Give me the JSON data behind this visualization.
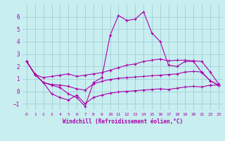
{
  "xlabel": "Windchill (Refroidissement éolien,°C)",
  "background_color": "#c8eef0",
  "grid_color": "#a0d0d8",
  "line_color": "#aa00aa",
  "xlim": [
    -0.5,
    23.5
  ],
  "ylim": [
    -1.5,
    7.0
  ],
  "yticks": [
    -1,
    0,
    1,
    2,
    3,
    4,
    5,
    6
  ],
  "xticks": [
    0,
    1,
    2,
    3,
    4,
    5,
    6,
    7,
    8,
    9,
    10,
    11,
    12,
    13,
    14,
    15,
    16,
    17,
    18,
    19,
    20,
    21,
    22,
    23
  ],
  "line1_y": [
    2.4,
    1.4,
    0.7,
    0.5,
    0.3,
    -0.2,
    -0.5,
    -1.2,
    0.7,
    1.1,
    4.5,
    6.1,
    5.7,
    5.8,
    6.4,
    4.7,
    4.0,
    2.1,
    2.0,
    2.4,
    2.4,
    1.5,
    0.85,
    0.5
  ],
  "line2_y": [
    2.4,
    1.35,
    1.1,
    1.2,
    1.3,
    1.4,
    1.2,
    1.3,
    1.4,
    1.5,
    1.7,
    1.9,
    2.1,
    2.2,
    2.4,
    2.5,
    2.6,
    2.45,
    2.5,
    2.5,
    2.45,
    2.4,
    1.55,
    0.6
  ],
  "line3_y": [
    2.4,
    1.35,
    0.7,
    0.55,
    0.5,
    0.4,
    0.2,
    0.1,
    0.6,
    0.8,
    0.95,
    1.05,
    1.1,
    1.15,
    1.2,
    1.25,
    1.3,
    1.35,
    1.4,
    1.55,
    1.6,
    1.55,
    0.85,
    0.5
  ],
  "line4_y": [
    2.4,
    1.35,
    0.7,
    -0.2,
    -0.5,
    -0.7,
    -0.3,
    -1.0,
    -0.5,
    -0.3,
    -0.15,
    -0.05,
    0.0,
    0.05,
    0.1,
    0.15,
    0.2,
    0.15,
    0.25,
    0.35,
    0.4,
    0.35,
    0.5,
    0.5
  ]
}
